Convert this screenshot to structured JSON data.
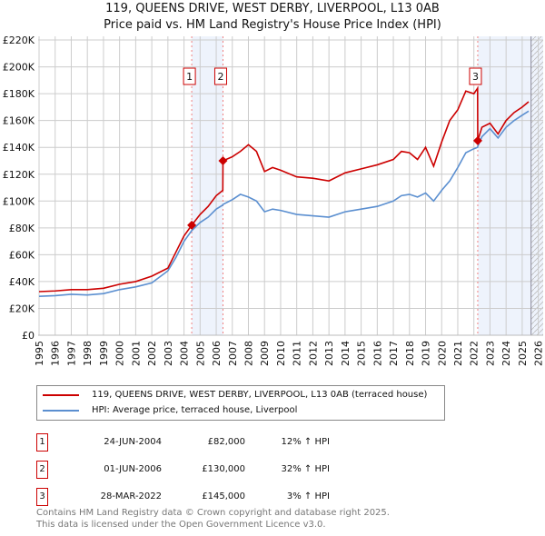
{
  "chart_data": {
    "type": "line",
    "title": "119, QUEENS DRIVE, WEST DERBY, LIVERPOOL, L13 0AB",
    "subtitle": "Price paid vs. HM Land Registry's House Price Index (HPI)",
    "xlim": [
      1995,
      2026
    ],
    "ylim": [
      0,
      220000
    ],
    "y_ticks": [
      {
        "v": 0,
        "l": "£0"
      },
      {
        "v": 20000,
        "l": "£20K"
      },
      {
        "v": 40000,
        "l": "£40K"
      },
      {
        "v": 60000,
        "l": "£60K"
      },
      {
        "v": 80000,
        "l": "£80K"
      },
      {
        "v": 100000,
        "l": "£100K"
      },
      {
        "v": 120000,
        "l": "£120K"
      },
      {
        "v": 140000,
        "l": "£140K"
      },
      {
        "v": 160000,
        "l": "£160K"
      },
      {
        "v": 180000,
        "l": "£180K"
      },
      {
        "v": 200000,
        "l": "£200K"
      },
      {
        "v": 220000,
        "l": "£220K"
      }
    ],
    "x_ticks": [
      "1995",
      "1996",
      "1997",
      "1998",
      "1999",
      "2000",
      "2001",
      "2002",
      "2003",
      "2004",
      "2005",
      "2006",
      "2007",
      "2008",
      "2009",
      "2010",
      "2011",
      "2012",
      "2013",
      "2014",
      "2015",
      "2016",
      "2017",
      "2018",
      "2019",
      "2020",
      "2021",
      "2022",
      "2023",
      "2024",
      "2025",
      "2026"
    ],
    "grid": true,
    "x": [
      1995,
      1996,
      1997,
      1998,
      1999,
      2000,
      2001,
      2002,
      2003,
      2003.5,
      2004,
      2004.48,
      2005,
      2005.5,
      2006,
      2006.41,
      2006.42,
      2007,
      2007.5,
      2008,
      2008.5,
      2009,
      2009.5,
      2010,
      2011,
      2012,
      2013,
      2014,
      2015,
      2016,
      2017,
      2017.5,
      2018,
      2018.5,
      2019,
      2019.5,
      2020,
      2020.5,
      2021,
      2021.5,
      2022,
      2022.23,
      2022.24,
      2022.5,
      2023,
      2023.5,
      2024,
      2024.5,
      2025,
      2025.4
    ],
    "series": [
      {
        "name": "119, QUEENS DRIVE, WEST DERBY, LIVERPOOL, L13 0AB (terraced house)",
        "color": "#cc0000",
        "values": [
          32500,
          33000,
          34000,
          34000,
          35000,
          38000,
          40000,
          44000,
          50000,
          62000,
          74000,
          82000,
          90000,
          96000,
          104000,
          108000,
          130000,
          133000,
          137000,
          142000,
          137000,
          122000,
          125000,
          123000,
          118000,
          117000,
          115000,
          121000,
          124000,
          127000,
          131000,
          137000,
          136000,
          131000,
          140000,
          126000,
          144000,
          160000,
          168000,
          182000,
          180000,
          184000,
          145000,
          155000,
          158000,
          150000,
          160000,
          166000,
          170000,
          174000
        ]
      },
      {
        "name": "HPI: Average price, terraced house, Liverpool",
        "color": "#5b8fd0",
        "values": [
          29000,
          29500,
          30500,
          30000,
          31000,
          34000,
          36000,
          39000,
          48000,
          58000,
          70000,
          78000,
          84000,
          88000,
          94000,
          97000,
          97500,
          101000,
          105000,
          103000,
          100000,
          92000,
          94000,
          93000,
          90000,
          89000,
          88000,
          92000,
          94000,
          96000,
          100000,
          104000,
          105000,
          103000,
          106000,
          100000,
          108000,
          115000,
          125000,
          136000,
          139000,
          140000,
          140800,
          148000,
          154000,
          147000,
          155000,
          160000,
          164000,
          167000
        ]
      }
    ],
    "sales": [
      {
        "n": "1",
        "x": 2004.48,
        "date": "24-JUN-2004",
        "price": "£82,000",
        "value": 82000,
        "hpi": "12% ↑ HPI"
      },
      {
        "n": "2",
        "x": 2006.42,
        "date": "01-JUN-2006",
        "price": "£130,000",
        "value": 130000,
        "hpi": "32% ↑ HPI"
      },
      {
        "n": "3",
        "x": 2022.24,
        "date": "28-MAR-2022",
        "price": "£145,000",
        "value": 145000,
        "hpi": "3% ↑ HPI"
      }
    ],
    "forecast_from": 2025.55,
    "legend": "below"
  },
  "footer": [
    "Contains HM Land Registry data © Crown copyright and database right 2025.",
    "This data is licensed under the Open Government Licence v3.0."
  ]
}
